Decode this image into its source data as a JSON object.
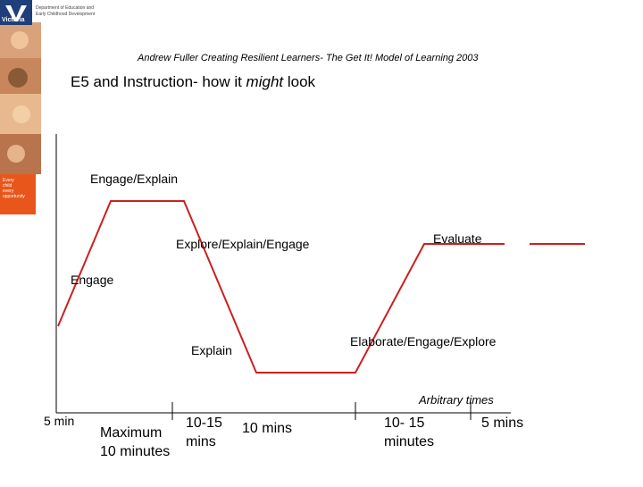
{
  "header": {
    "citation": "Andrew Fuller Creating Resilient Learners- The Get It! Model of Learning 2003",
    "title_prefix": "E5 and Instruction- how it ",
    "title_emphasis": "might",
    "title_suffix": " look"
  },
  "logo": {
    "wordmark": "Victoria",
    "department_line1": "Department of Education and",
    "department_line2": "Early Childhood Development"
  },
  "sidebar_tag": {
    "line1": "Every",
    "line2": "child",
    "line3": "every",
    "line4": "opportunity"
  },
  "diagram": {
    "phase_labels": {
      "engage_explain": "Engage/Explain",
      "explore_explain_engage": "Explore/Explain/Engage",
      "evaluate": "Evaluate",
      "engage": "Engage",
      "explain": "Explain",
      "elaborate_engage_explore": "Elaborate/Engage/Explore"
    },
    "axis_label": "Arbitrary times",
    "time_labels": {
      "t1": "5 min",
      "t2": "Maximum 10 minutes",
      "t3": "10-15 mins",
      "t4": "10 mins",
      "t5": "10- 15 minutes",
      "t6": "5 mins"
    }
  },
  "colors": {
    "line": "#cc1f1f",
    "axis": "#000000",
    "sidebar_orange": "#e8561c",
    "logo_blue": "#1f3f7a"
  }
}
